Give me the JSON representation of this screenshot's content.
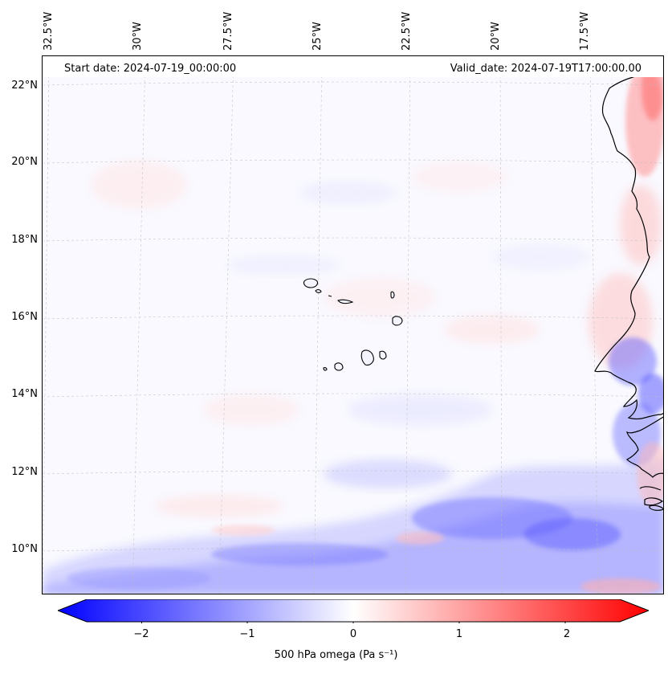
{
  "map": {
    "start_date": "Start date: 2024-07-19_00:00:00",
    "valid_date": "Valid_date: 2024-07-19T17:00:00.00",
    "lat_labels": [
      "22°N",
      "20°N",
      "18°N",
      "16°N",
      "14°N",
      "12°N",
      "10°N"
    ],
    "lon_labels": [
      "32.5°W",
      "30°W",
      "27.5°W",
      "25°W",
      "22.5°W",
      "20°W",
      "17.5°W"
    ],
    "gridlines": true,
    "coastlines": true,
    "colormap": "bwr",
    "colors": {
      "negative": "#0000ff",
      "zero": "#ffffff",
      "positive": "#ff0000",
      "coast": "#000000",
      "grid": "#bbbbbb"
    }
  },
  "colorbar": {
    "label": "500 hPa omega (Pa s⁻¹)",
    "ticks": [
      "−2",
      "−1",
      "0",
      "1",
      "2"
    ],
    "range": [
      -2.75,
      2.75
    ],
    "extend": "both"
  }
}
